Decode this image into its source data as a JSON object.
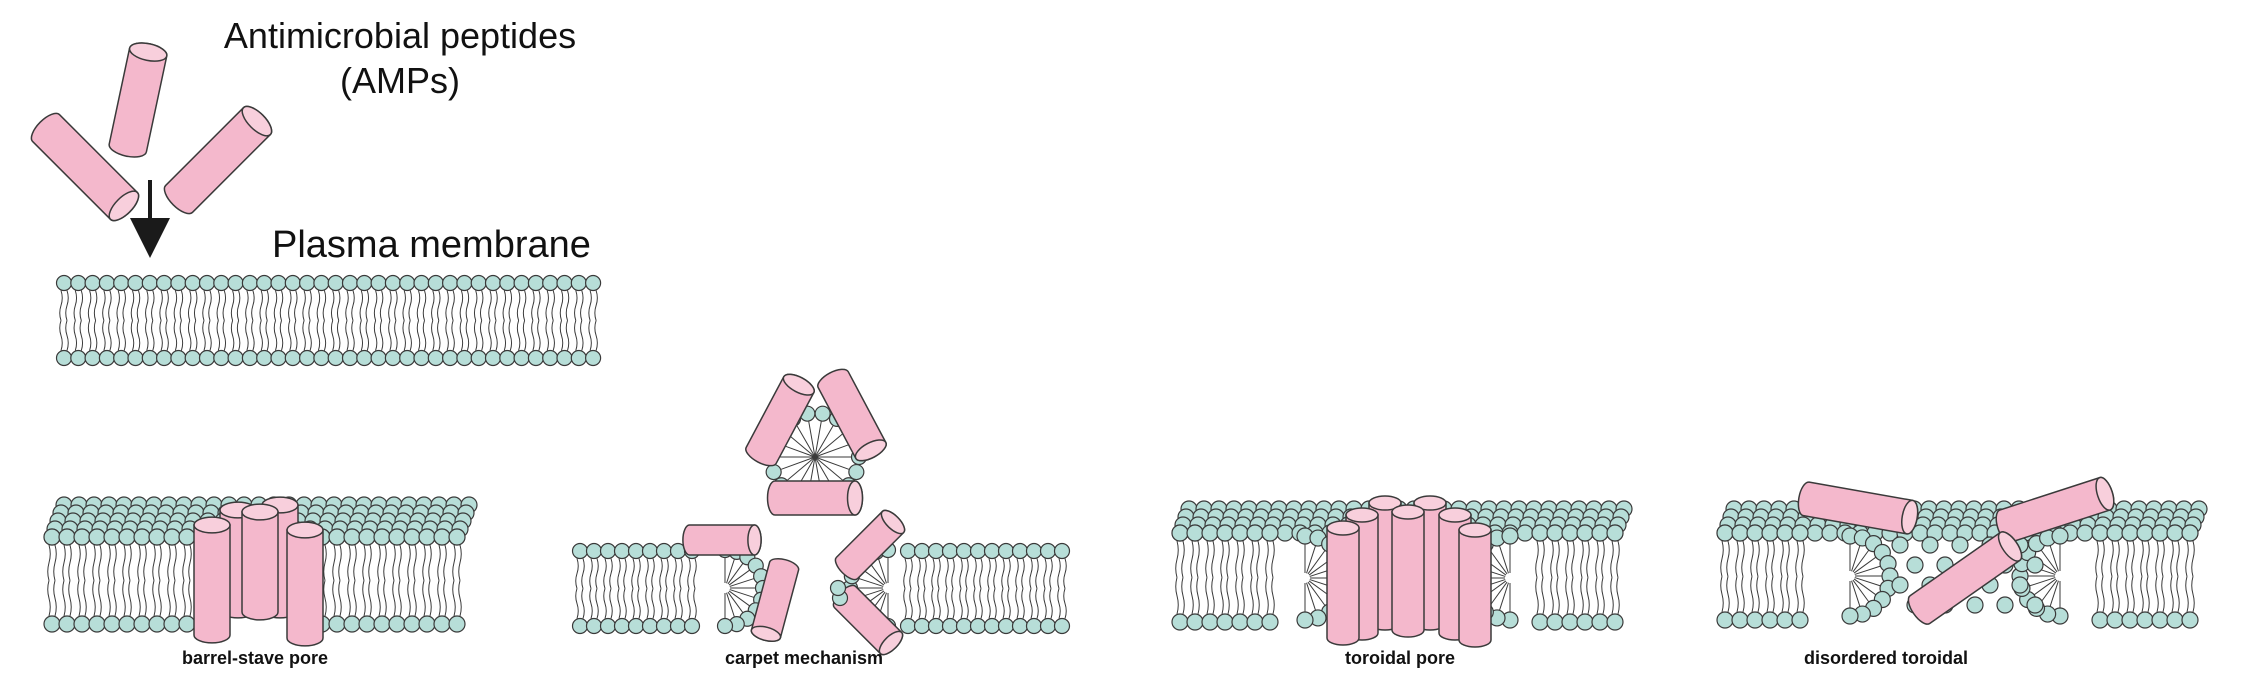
{
  "labels": {
    "title_line1": "Antimicrobial peptides",
    "title_line2": "(AMPs)",
    "membrane": "Plasma membrane",
    "barrel_stave": "barrel-stave pore",
    "carpet": "carpet mechanism",
    "toroidal": "toroidal pore",
    "disordered": "disordered toroidal"
  },
  "colors": {
    "peptide_fill": "#f4b8cc",
    "peptide_end": "#f8cfdc",
    "head_fill": "#b7ded8",
    "outline": "#3a3a3a",
    "tail": "#3a3a3a",
    "arrow": "#1a1a1a"
  }
}
